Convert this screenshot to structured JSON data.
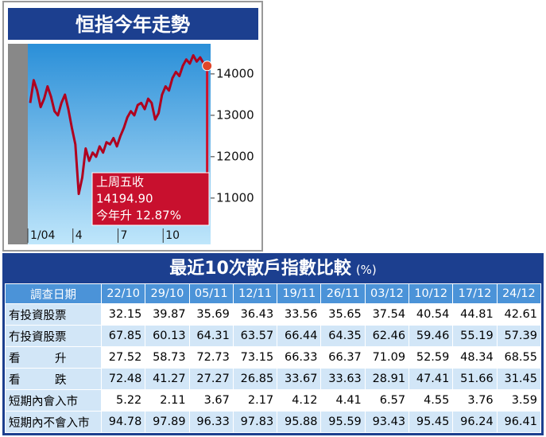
{
  "chart_data": {
    "type": "line",
    "title": "恒指今年走勢",
    "x": [
      0,
      1,
      2,
      3,
      4,
      5,
      6,
      7,
      8,
      9,
      10,
      11,
      12,
      13,
      14,
      15,
      16,
      17,
      18,
      19,
      20,
      21,
      22,
      23,
      24,
      25,
      26,
      27,
      28,
      29,
      30,
      31,
      32,
      33,
      34,
      35,
      36,
      37,
      38,
      39,
      40,
      41,
      42,
      43,
      44,
      45,
      46,
      47,
      48,
      49,
      50,
      51
    ],
    "series": [
      {
        "color": "#b0001e",
        "values": [
          13300,
          13850,
          13600,
          13200,
          13400,
          13700,
          13450,
          13100,
          13000,
          13300,
          13500,
          13150,
          12700,
          12300,
          11100,
          11500,
          12200,
          11900,
          12100,
          12000,
          12250,
          12100,
          12350,
          12300,
          12450,
          12250,
          12500,
          12700,
          12950,
          13100,
          13000,
          13250,
          13300,
          13150,
          13400,
          13300,
          12900,
          13050,
          13500,
          13700,
          13600,
          13900,
          14050,
          13950,
          14200,
          14350,
          14250,
          14450,
          14300,
          14400,
          14250,
          14194.9
        ]
      }
    ],
    "xlim": [
      0,
      52
    ],
    "xticks": [
      {
        "value": 0,
        "label": "1/04"
      },
      {
        "value": 13,
        "label": "4"
      },
      {
        "value": 26,
        "label": "7"
      },
      {
        "value": 39,
        "label": "10"
      }
    ],
    "ylim": [
      9920,
      14690
    ],
    "yticks": [
      11000,
      12000,
      13000,
      14000
    ],
    "annotation": [
      "上周五收",
      "14194.90",
      "今年升 12.87%"
    ]
  },
  "table": {
    "title": "最近10次散戶指數比較",
    "unit": "(%)",
    "header": [
      "調查日期",
      "22/10",
      "29/10",
      "05/11",
      "12/11",
      "19/11",
      "26/11",
      "03/12",
      "10/12",
      "17/12",
      "24/12"
    ],
    "rows": [
      [
        "有投資股票",
        32.15,
        39.87,
        35.69,
        36.43,
        33.56,
        35.65,
        37.54,
        40.54,
        44.81,
        42.61
      ],
      [
        "冇投資股票",
        67.85,
        60.13,
        64.31,
        63.57,
        66.44,
        64.35,
        62.46,
        59.46,
        55.19,
        57.39
      ],
      [
        "看　　　升",
        27.52,
        58.73,
        72.73,
        73.15,
        66.33,
        66.37,
        71.09,
        52.59,
        48.34,
        68.55
      ],
      [
        "看　　　跌",
        72.48,
        41.27,
        27.27,
        26.85,
        33.67,
        33.63,
        28.91,
        47.41,
        51.66,
        31.45
      ],
      [
        "短期內會入市",
        5.22,
        2.11,
        3.67,
        2.17,
        4.12,
        4.41,
        6.57,
        4.55,
        3.76,
        3.59
      ],
      [
        "短期內不會入市",
        94.78,
        97.89,
        96.33,
        97.83,
        95.88,
        95.59,
        93.43,
        95.45,
        96.24,
        96.41
      ]
    ]
  }
}
